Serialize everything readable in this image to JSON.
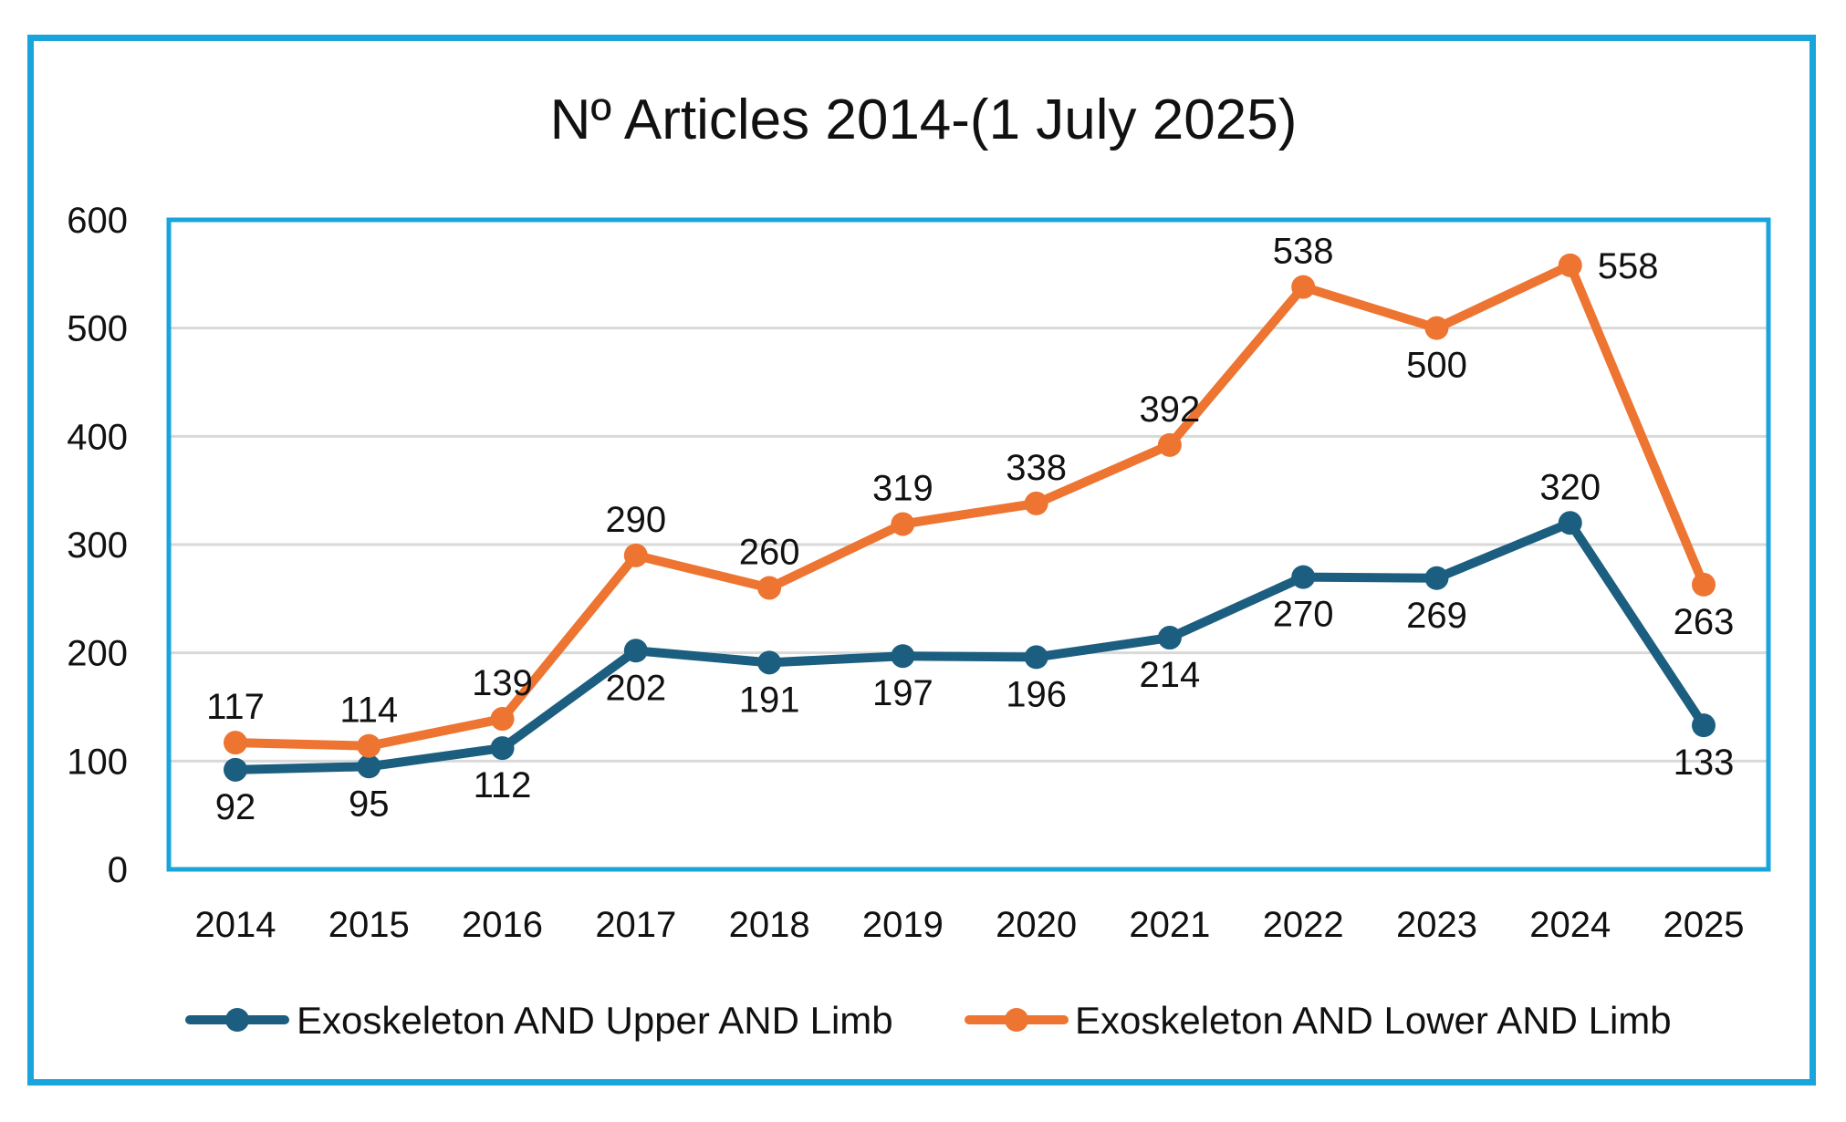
{
  "chart_data": {
    "type": "line",
    "title": "Nº Articles 2014-(1 July 2025)",
    "xlabel": "",
    "ylabel": "",
    "ylim": [
      0,
      600
    ],
    "y_ticks": [
      "0",
      "100",
      "200",
      "300",
      "400",
      "500",
      "600"
    ],
    "categories": [
      "2014",
      "2015",
      "2016",
      "2017",
      "2018",
      "2019",
      "2020",
      "2021",
      "2022",
      "2023",
      "2024",
      "2025"
    ],
    "grid": true,
    "legend_position": "bottom",
    "series": [
      {
        "name": "Exoskeleton AND Upper AND Limb",
        "color": "#1b5e80",
        "values": [
          92,
          95,
          112,
          202,
          191,
          197,
          196,
          214,
          270,
          269,
          320,
          133
        ],
        "label_positions": [
          "below",
          "below",
          "below",
          "below",
          "below",
          "below",
          "below",
          "below",
          "below",
          "below",
          "above",
          "below"
        ]
      },
      {
        "name": "Exoskeleton AND Lower AND Limb",
        "color": "#ed7431",
        "values": [
          117,
          114,
          139,
          290,
          260,
          319,
          338,
          392,
          538,
          500,
          558,
          263
        ],
        "label_positions": [
          "above",
          "above",
          "above",
          "above",
          "above",
          "above",
          "above",
          "above",
          "above",
          "below",
          "right",
          "below"
        ]
      }
    ]
  }
}
